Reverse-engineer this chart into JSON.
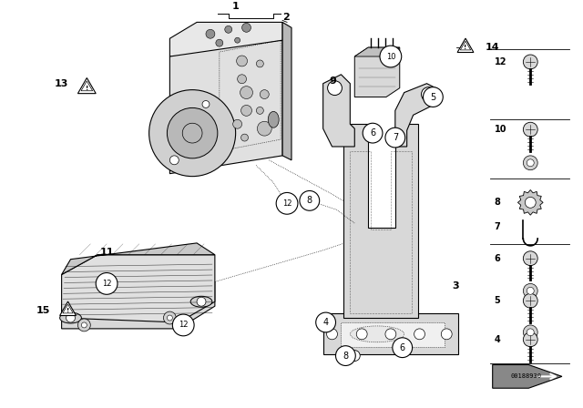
{
  "background_color": "#ffffff",
  "image_number": "00188930",
  "line_color": "#000000",
  "gray_light": "#d8d8d8",
  "gray_mid": "#c0c0c0",
  "gray_dark": "#999999"
}
